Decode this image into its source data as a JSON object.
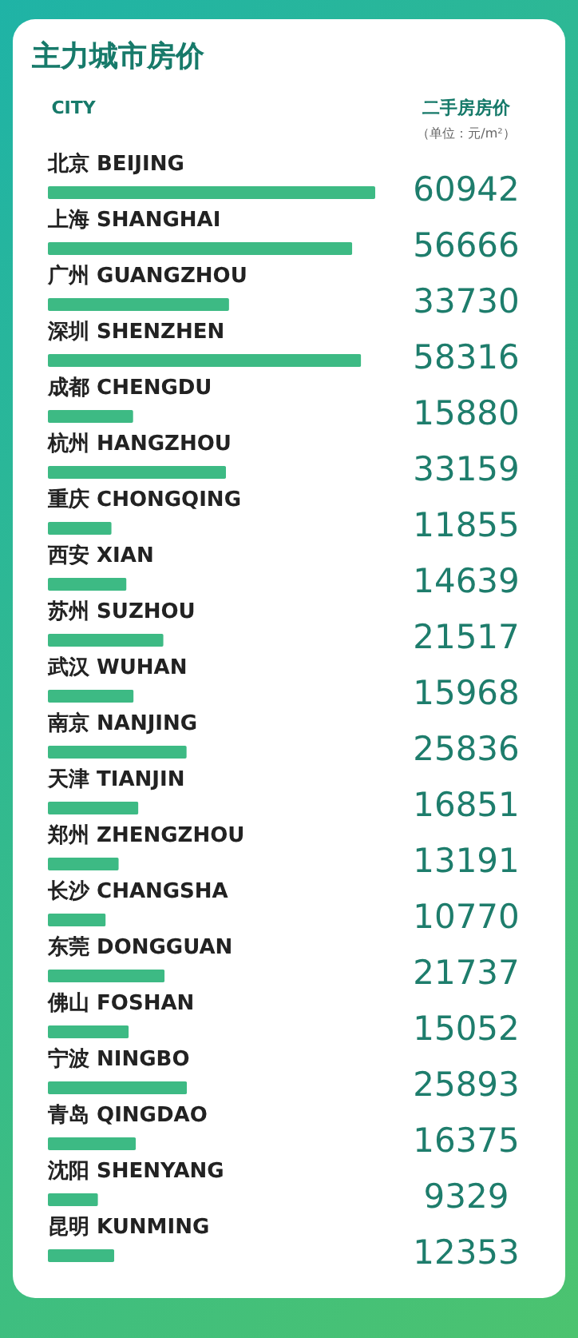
{
  "chart_data": {
    "type": "bar",
    "orientation": "horizontal",
    "title": "主力城市房价",
    "ylabel": "CITY",
    "xlabel": "二手房房价",
    "subtitle": "（单位：元/m²）",
    "categories": [
      "北京 BEIJING",
      "上海 SHANGHAI",
      "广州 GUANGZHOU",
      "深圳 SHENZHEN",
      "成都 CHENGDU",
      "杭州 HANGZHOU",
      "重庆 CHONGQING",
      "西安 XIAN",
      "苏州 SUZHOU",
      "武汉 WUHAN",
      "南京 NANJING",
      "天津 TIANJIN",
      "郑州 ZHENGZHOU",
      "长沙 CHANGSHA",
      "东莞 DONGGUAN",
      "佛山 FOSHAN",
      "宁波 NINGBO",
      "青岛 QINGDAO",
      "沈阳 SHENYANG",
      "昆明 KUNMING"
    ],
    "values": [
      60942,
      56666,
      33730,
      58316,
      15880,
      33159,
      11855,
      14639,
      21517,
      15968,
      25836,
      16851,
      13191,
      10770,
      21737,
      15052,
      25893,
      16375,
      9329,
      12353
    ],
    "color": "#3dba84",
    "data_labels": true
  }
}
